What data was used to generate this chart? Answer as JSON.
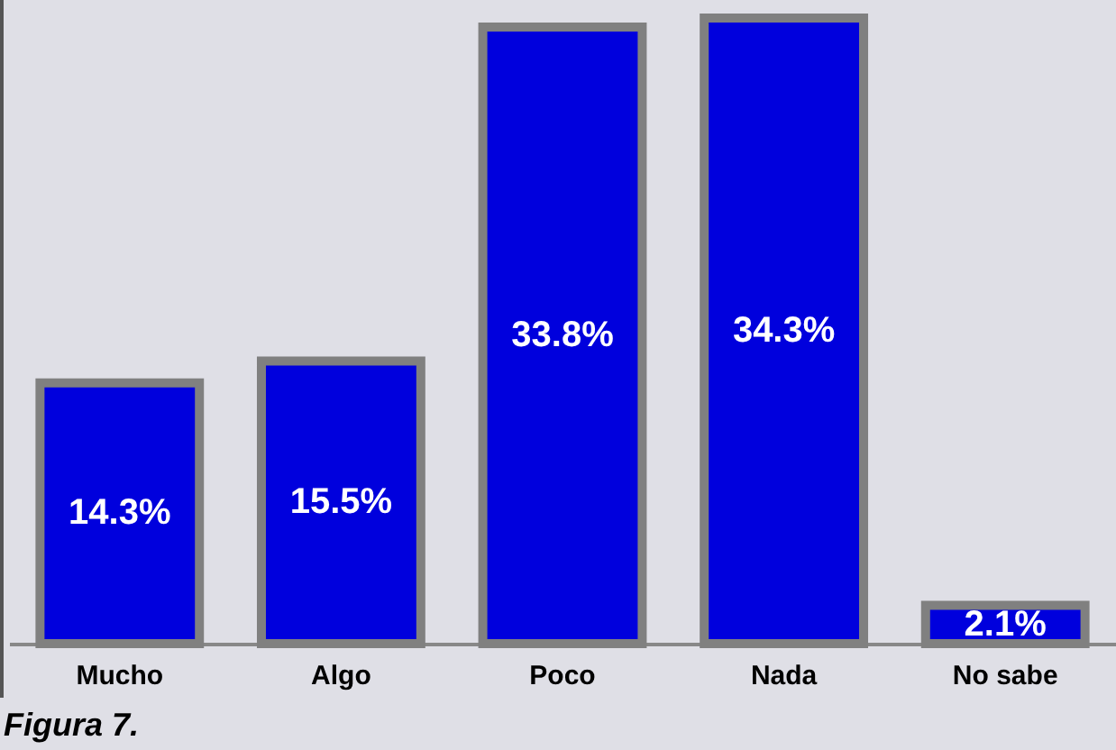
{
  "chart_data": {
    "type": "bar",
    "categories": [
      "Mucho",
      "Algo",
      "Poco",
      "Nada",
      "No sabe"
    ],
    "values": [
      14.3,
      15.5,
      33.8,
      34.3,
      2.1
    ],
    "value_labels": [
      "14.3%",
      "15.5%",
      "33.8%",
      "34.3%",
      "2.1%"
    ],
    "color": "#0000dd",
    "tick_labels": "x",
    "annotations": [
      "Figura 7."
    ]
  }
}
